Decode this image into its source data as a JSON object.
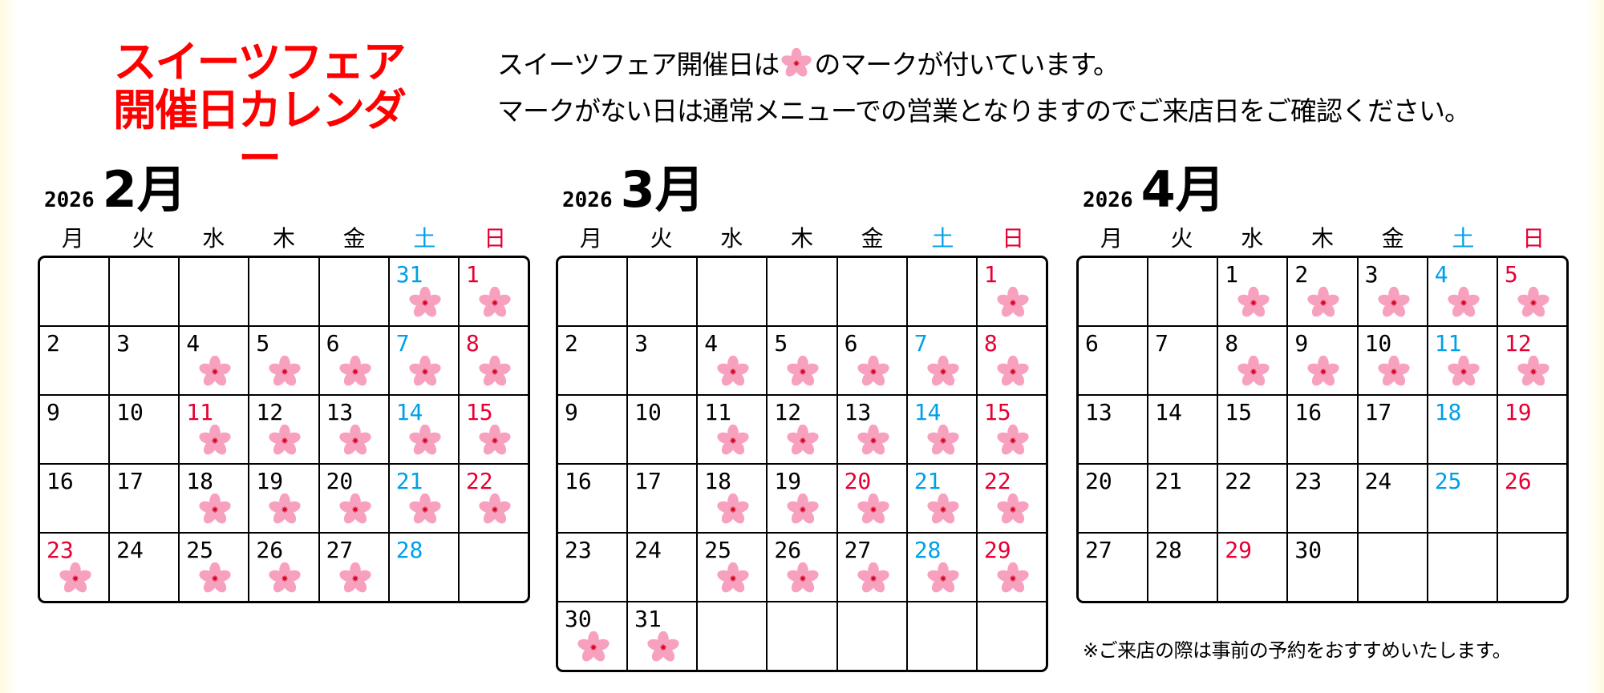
{
  "title": {
    "line1": "スイーツフェア",
    "line2": "開催日カレンダー",
    "color": "#ff0000"
  },
  "notice": {
    "line1_before": "スイーツフェア開催日は",
    "line1_icon": "sakura-mark-icon",
    "line1_after": "のマークが付いています。",
    "line2": "マークがない日は通常メニューでの営業となりますのでご来店日をご確認ください。"
  },
  "colors": {
    "saturday": "#00a0e9",
    "sunday_holiday": "#e60033",
    "sakura": "#f7a1bf"
  },
  "weekdays": [
    "月",
    "火",
    "水",
    "木",
    "金",
    "土",
    "日"
  ],
  "calendars": [
    {
      "year": "2026",
      "month": "2月",
      "cells": [
        null,
        null,
        null,
        null,
        null,
        {
          "d": "31",
          "c": "sat",
          "m": true
        },
        {
          "d": "1",
          "c": "sun",
          "m": true
        },
        {
          "d": "2"
        },
        {
          "d": "3"
        },
        {
          "d": "4",
          "m": true
        },
        {
          "d": "5",
          "m": true
        },
        {
          "d": "6",
          "m": true
        },
        {
          "d": "7",
          "c": "sat",
          "m": true
        },
        {
          "d": "8",
          "c": "sun",
          "m": true
        },
        {
          "d": "9"
        },
        {
          "d": "10"
        },
        {
          "d": "11",
          "c": "holiday",
          "m": true
        },
        {
          "d": "12",
          "m": true
        },
        {
          "d": "13",
          "m": true
        },
        {
          "d": "14",
          "c": "sat",
          "m": true
        },
        {
          "d": "15",
          "c": "sun",
          "m": true
        },
        {
          "d": "16"
        },
        {
          "d": "17"
        },
        {
          "d": "18",
          "m": true
        },
        {
          "d": "19",
          "m": true
        },
        {
          "d": "20",
          "m": true
        },
        {
          "d": "21",
          "c": "sat",
          "m": true
        },
        {
          "d": "22",
          "c": "sun",
          "m": true
        },
        {
          "d": "23",
          "c": "holiday",
          "m": true
        },
        {
          "d": "24"
        },
        {
          "d": "25",
          "m": true
        },
        {
          "d": "26",
          "m": true
        },
        {
          "d": "27",
          "m": true
        },
        {
          "d": "28",
          "c": "sat"
        },
        null
      ]
    },
    {
      "year": "2026",
      "month": "3月",
      "cells": [
        null,
        null,
        null,
        null,
        null,
        null,
        {
          "d": "1",
          "c": "sun",
          "m": true
        },
        {
          "d": "2"
        },
        {
          "d": "3"
        },
        {
          "d": "4",
          "m": true
        },
        {
          "d": "5",
          "m": true
        },
        {
          "d": "6",
          "m": true
        },
        {
          "d": "7",
          "c": "sat",
          "m": true
        },
        {
          "d": "8",
          "c": "sun",
          "m": true
        },
        {
          "d": "9"
        },
        {
          "d": "10"
        },
        {
          "d": "11",
          "m": true
        },
        {
          "d": "12",
          "m": true
        },
        {
          "d": "13",
          "m": true
        },
        {
          "d": "14",
          "c": "sat",
          "m": true
        },
        {
          "d": "15",
          "c": "sun",
          "m": true
        },
        {
          "d": "16"
        },
        {
          "d": "17"
        },
        {
          "d": "18",
          "m": true
        },
        {
          "d": "19",
          "m": true
        },
        {
          "d": "20",
          "c": "holiday",
          "m": true
        },
        {
          "d": "21",
          "c": "sat",
          "m": true
        },
        {
          "d": "22",
          "c": "sun",
          "m": true
        },
        {
          "d": "23"
        },
        {
          "d": "24"
        },
        {
          "d": "25",
          "m": true
        },
        {
          "d": "26",
          "m": true
        },
        {
          "d": "27",
          "m": true
        },
        {
          "d": "28",
          "c": "sat",
          "m": true
        },
        {
          "d": "29",
          "c": "sun",
          "m": true
        },
        {
          "d": "30",
          "m": true
        },
        {
          "d": "31",
          "m": true
        },
        null,
        null,
        null,
        null,
        null
      ]
    },
    {
      "year": "2026",
      "month": "4月",
      "cells": [
        null,
        null,
        {
          "d": "1",
          "m": true
        },
        {
          "d": "2",
          "m": true
        },
        {
          "d": "3",
          "m": true
        },
        {
          "d": "4",
          "c": "sat",
          "m": true
        },
        {
          "d": "5",
          "c": "sun",
          "m": true
        },
        {
          "d": "6"
        },
        {
          "d": "7"
        },
        {
          "d": "8",
          "m": true
        },
        {
          "d": "9",
          "m": true
        },
        {
          "d": "10",
          "m": true
        },
        {
          "d": "11",
          "c": "sat",
          "m": true
        },
        {
          "d": "12",
          "c": "sun",
          "m": true
        },
        {
          "d": "13"
        },
        {
          "d": "14"
        },
        {
          "d": "15"
        },
        {
          "d": "16"
        },
        {
          "d": "17"
        },
        {
          "d": "18",
          "c": "sat"
        },
        {
          "d": "19",
          "c": "sun"
        },
        {
          "d": "20"
        },
        {
          "d": "21"
        },
        {
          "d": "22"
        },
        {
          "d": "23"
        },
        {
          "d": "24"
        },
        {
          "d": "25",
          "c": "sat"
        },
        {
          "d": "26",
          "c": "sun"
        },
        {
          "d": "27"
        },
        {
          "d": "28"
        },
        {
          "d": "29",
          "c": "holiday"
        },
        {
          "d": "30"
        },
        null,
        null,
        null
      ]
    }
  ],
  "footnote": "※ご来店の際は事前の予約をおすすめいたします。"
}
